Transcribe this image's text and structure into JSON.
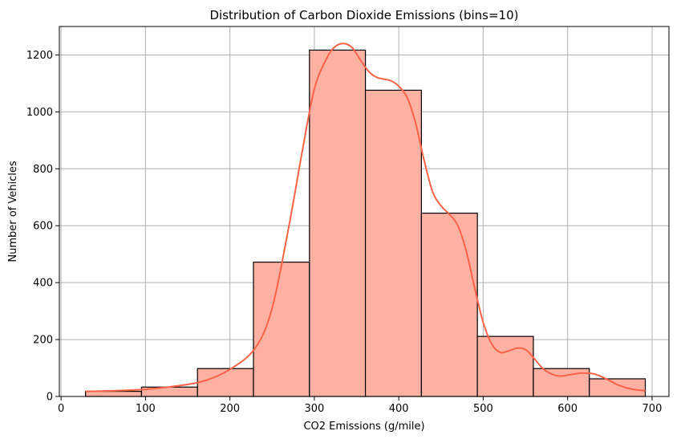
{
  "chart_data": {
    "type": "bar",
    "title": "Distribution of Carbon Dioxide Emissions (bins=10)",
    "xlabel": "CO2 Emissions (g/mile)",
    "ylabel": "Number of Vehicles",
    "xlim": [
      -2,
      720
    ],
    "ylim": [
      0,
      1300
    ],
    "xticks": [
      0,
      100,
      200,
      300,
      400,
      500,
      600,
      700
    ],
    "yticks": [
      0,
      200,
      400,
      600,
      800,
      1000,
      1200
    ],
    "grid": true,
    "bin_edges": [
      29,
      95.3,
      161.6,
      227.9,
      294.2,
      360.5,
      426.8,
      493.1,
      559.4,
      625.7,
      692
    ],
    "values": [
      18,
      33,
      98,
      472,
      1217,
      1076,
      644,
      211,
      98,
      62
    ],
    "bar_color": "#ffb1a3",
    "bar_edge_color": "#000000",
    "kde": {
      "color": "#ff6347",
      "x": [
        29,
        60,
        100,
        140,
        170,
        200,
        230,
        250,
        270,
        285,
        300,
        315,
        325,
        335,
        345,
        355,
        365,
        375,
        390,
        400,
        410,
        420,
        430,
        440,
        450,
        460,
        470,
        480,
        490,
        500,
        510,
        520,
        530,
        540,
        550,
        560,
        570,
        580,
        590,
        600,
        610,
        620,
        630,
        640,
        650,
        660,
        670,
        680,
        692
      ],
      "y": [
        18,
        20,
        25,
        38,
        55,
        95,
        170,
        310,
        600,
        850,
        1080,
        1190,
        1230,
        1240,
        1225,
        1180,
        1140,
        1120,
        1110,
        1090,
        1050,
        960,
        830,
        720,
        670,
        640,
        600,
        510,
        380,
        260,
        185,
        155,
        160,
        170,
        165,
        135,
        100,
        80,
        72,
        75,
        80,
        82,
        80,
        70,
        55,
        40,
        30,
        24,
        20
      ]
    }
  }
}
